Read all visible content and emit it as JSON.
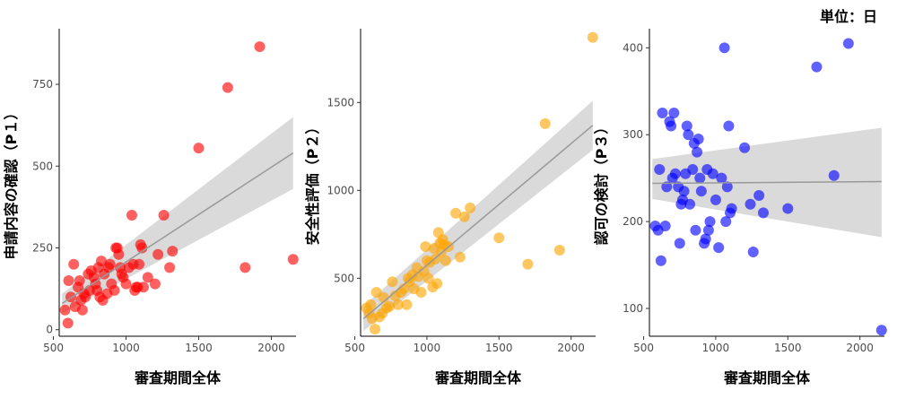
{
  "unit_note": "単位：日",
  "colors": {
    "ribbon": "#d3d3d3",
    "trend": "#999999",
    "axis": "#000000"
  },
  "chart_data": [
    {
      "type": "scatter",
      "xlabel": "審査期間全体",
      "ylabel": "申請内容の確認（P１）",
      "color": "#ff0000",
      "xlim": [
        540,
        2170
      ],
      "ylim": [
        -20,
        920
      ],
      "xticks": [
        500,
        1000,
        1500,
        2000
      ],
      "yticks": [
        0,
        250,
        500,
        750
      ],
      "trend": {
        "x": [
          560,
          2150
        ],
        "y": [
          80,
          540
        ],
        "band_start": [
          50,
          110
        ],
        "band_end": [
          430,
          650
        ]
      },
      "points": [
        [
          580,
          60
        ],
        [
          600,
          20
        ],
        [
          605,
          150
        ],
        [
          620,
          100
        ],
        [
          640,
          200
        ],
        [
          650,
          70
        ],
        [
          670,
          130
        ],
        [
          680,
          150
        ],
        [
          690,
          90
        ],
        [
          700,
          60
        ],
        [
          710,
          110
        ],
        [
          720,
          100
        ],
        [
          740,
          170
        ],
        [
          750,
          120
        ],
        [
          760,
          180
        ],
        [
          780,
          160
        ],
        [
          790,
          140
        ],
        [
          800,
          120
        ],
        [
          810,
          190
        ],
        [
          820,
          100
        ],
        [
          830,
          210
        ],
        [
          840,
          90
        ],
        [
          850,
          170
        ],
        [
          870,
          110
        ],
        [
          880,
          190
        ],
        [
          890,
          200
        ],
        [
          900,
          140
        ],
        [
          920,
          120
        ],
        [
          930,
          250
        ],
        [
          940,
          250
        ],
        [
          950,
          230
        ],
        [
          960,
          190
        ],
        [
          970,
          170
        ],
        [
          980,
          160
        ],
        [
          1000,
          140
        ],
        [
          1020,
          190
        ],
        [
          1040,
          350
        ],
        [
          1050,
          200
        ],
        [
          1060,
          120
        ],
        [
          1070,
          130
        ],
        [
          1080,
          130
        ],
        [
          1090,
          200
        ],
        [
          1100,
          260
        ],
        [
          1110,
          250
        ],
        [
          1120,
          130
        ],
        [
          1150,
          160
        ],
        [
          1200,
          140
        ],
        [
          1220,
          230
        ],
        [
          1260,
          350
        ],
        [
          1300,
          190
        ],
        [
          1320,
          240
        ],
        [
          1500,
          555
        ],
        [
          1700,
          740
        ],
        [
          1820,
          190
        ],
        [
          1920,
          865
        ],
        [
          2150,
          215
        ]
      ]
    },
    {
      "type": "scatter",
      "xlabel": "審査期間全体",
      "ylabel": "安全性評価（P２）",
      "color": "#ffa500",
      "xlim": [
        540,
        2170
      ],
      "ylim": [
        170,
        1920
      ],
      "xticks": [
        500,
        1000,
        1500,
        2000
      ],
      "yticks": [
        500,
        1000,
        1500
      ],
      "trend": {
        "x": [
          560,
          2150
        ],
        "y": [
          270,
          1370
        ],
        "band_start": [
          200,
          340
        ],
        "band_end": [
          1230,
          1510
        ]
      },
      "points": [
        [
          580,
          330
        ],
        [
          600,
          300
        ],
        [
          610,
          350
        ],
        [
          620,
          270
        ],
        [
          640,
          210
        ],
        [
          650,
          420
        ],
        [
          670,
          280
        ],
        [
          690,
          300
        ],
        [
          700,
          390
        ],
        [
          720,
          330
        ],
        [
          740,
          340
        ],
        [
          760,
          480
        ],
        [
          780,
          400
        ],
        [
          800,
          350
        ],
        [
          820,
          420
        ],
        [
          840,
          440
        ],
        [
          860,
          350
        ],
        [
          870,
          500
        ],
        [
          880,
          480
        ],
        [
          900,
          520
        ],
        [
          910,
          440
        ],
        [
          930,
          560
        ],
        [
          940,
          510
        ],
        [
          960,
          420
        ],
        [
          980,
          540
        ],
        [
          990,
          680
        ],
        [
          1000,
          600
        ],
        [
          1010,
          500
        ],
        [
          1020,
          590
        ],
        [
          1040,
          450
        ],
        [
          1050,
          670
        ],
        [
          1060,
          610
        ],
        [
          1070,
          470
        ],
        [
          1080,
          760
        ],
        [
          1090,
          700
        ],
        [
          1100,
          650
        ],
        [
          1110,
          720
        ],
        [
          1120,
          690
        ],
        [
          1130,
          600
        ],
        [
          1150,
          680
        ],
        [
          1200,
          870
        ],
        [
          1230,
          620
        ],
        [
          1260,
          850
        ],
        [
          1300,
          900
        ],
        [
          1500,
          730
        ],
        [
          1700,
          580
        ],
        [
          1820,
          1380
        ],
        [
          1920,
          660
        ],
        [
          2150,
          1870
        ]
      ]
    },
    {
      "type": "scatter",
      "xlabel": "審査期間全体",
      "ylabel": "認可の検討（P３）",
      "color": "#0000ff",
      "xlim": [
        540,
        2170
      ],
      "ylim": [
        68,
        422
      ],
      "xticks": [
        500,
        1000,
        1500,
        2000
      ],
      "yticks": [
        100,
        200,
        300,
        400
      ],
      "trend": {
        "x": [
          560,
          2150
        ],
        "y": [
          244,
          246
        ],
        "band_start": [
          226,
          272
        ],
        "band_end": [
          182,
          308
        ]
      },
      "points": [
        [
          580,
          195
        ],
        [
          600,
          190
        ],
        [
          610,
          260
        ],
        [
          620,
          155
        ],
        [
          630,
          325
        ],
        [
          650,
          195
        ],
        [
          660,
          240
        ],
        [
          680,
          315
        ],
        [
          690,
          310
        ],
        [
          700,
          250
        ],
        [
          710,
          325
        ],
        [
          720,
          255
        ],
        [
          740,
          240
        ],
        [
          750,
          175
        ],
        [
          760,
          220
        ],
        [
          770,
          225
        ],
        [
          780,
          235
        ],
        [
          790,
          255
        ],
        [
          800,
          310
        ],
        [
          810,
          300
        ],
        [
          820,
          220
        ],
        [
          840,
          260
        ],
        [
          850,
          290
        ],
        [
          860,
          190
        ],
        [
          870,
          280
        ],
        [
          880,
          295
        ],
        [
          890,
          250
        ],
        [
          900,
          235
        ],
        [
          920,
          175
        ],
        [
          930,
          180
        ],
        [
          940,
          260
        ],
        [
          950,
          190
        ],
        [
          960,
          200
        ],
        [
          980,
          255
        ],
        [
          1000,
          225
        ],
        [
          1020,
          170
        ],
        [
          1040,
          250
        ],
        [
          1060,
          400
        ],
        [
          1070,
          200
        ],
        [
          1080,
          240
        ],
        [
          1090,
          310
        ],
        [
          1100,
          210
        ],
        [
          1110,
          215
        ],
        [
          1200,
          285
        ],
        [
          1240,
          220
        ],
        [
          1260,
          165
        ],
        [
          1300,
          230
        ],
        [
          1330,
          210
        ],
        [
          1500,
          215
        ],
        [
          1700,
          378
        ],
        [
          1820,
          253
        ],
        [
          1920,
          405
        ],
        [
          2150,
          75
        ]
      ]
    }
  ]
}
